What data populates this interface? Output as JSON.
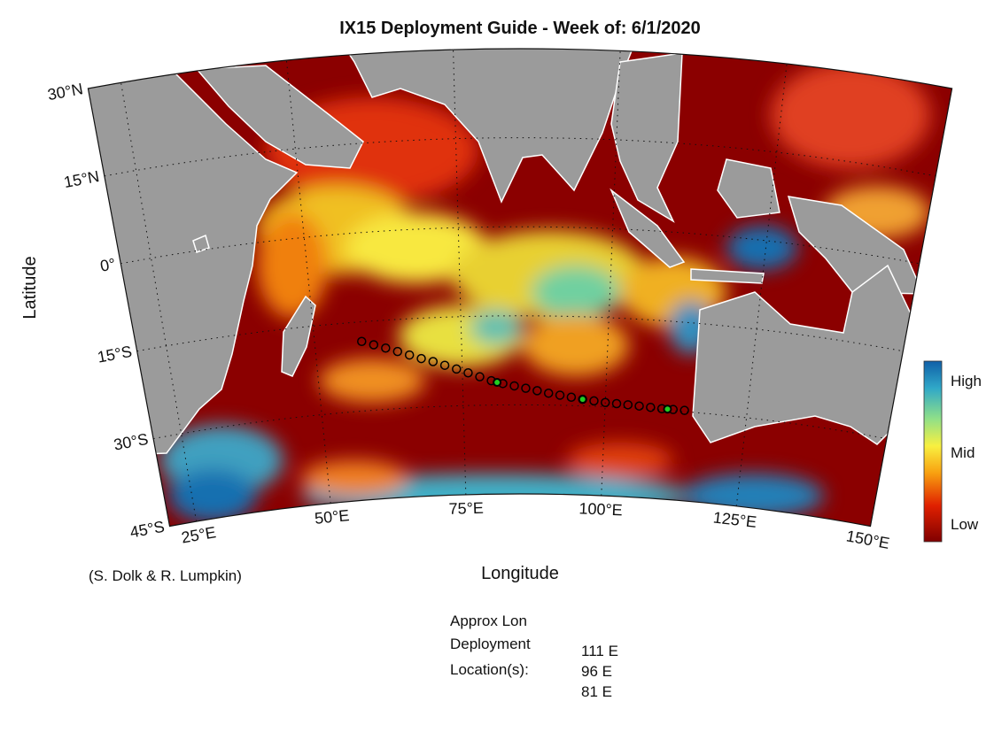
{
  "chart_data": {
    "type": "map",
    "title": "IX15 Deployment Guide - Week of: 6/1/2020",
    "x_label": "Longitude",
    "y_label": "Latitude",
    "xlim": [
      20,
      150
    ],
    "ylim": [
      -45,
      30
    ],
    "xticks": [
      {
        "value": 25,
        "label": "25°E"
      },
      {
        "value": 50,
        "label": "50°E"
      },
      {
        "value": 75,
        "label": "75°E"
      },
      {
        "value": 100,
        "label": "100°E"
      },
      {
        "value": 125,
        "label": "125°E"
      },
      {
        "value": 150,
        "label": "150°E"
      }
    ],
    "yticks": [
      {
        "value": 30,
        "label": "30°N"
      },
      {
        "value": 15,
        "label": "15°N"
      },
      {
        "value": 0,
        "label": "0°"
      },
      {
        "value": -15,
        "label": "15°S"
      },
      {
        "value": -30,
        "label": "30°S"
      },
      {
        "value": -45,
        "label": "45°S"
      }
    ],
    "grid": true,
    "colorbar": {
      "labels": [
        "High",
        "Mid",
        "Low"
      ]
    },
    "track": {
      "color": "#000000",
      "lon": [
        58,
        60,
        62,
        64,
        66,
        68,
        70,
        72,
        74,
        76,
        78,
        80,
        82,
        84,
        86,
        88,
        90,
        92,
        94,
        96,
        98,
        100,
        102,
        104,
        106,
        108,
        110,
        112,
        114
      ],
      "lat": [
        -18.3,
        -19.0,
        -19.7,
        -20.4,
        -21.1,
        -21.8,
        -22.4,
        -23.1,
        -23.8,
        -24.5,
        -25.2,
        -25.9,
        -26.4,
        -26.8,
        -27.2,
        -27.6,
        -28.0,
        -28.3,
        -28.6,
        -28.9,
        -29.1,
        -29.3,
        -29.4,
        -29.5,
        -29.6,
        -29.7,
        -29.8,
        -29.8,
        -29.8
      ]
    },
    "deployment": {
      "color": "#22cc22",
      "heading": [
        "Approx Lon",
        "Deployment",
        "Location(s):"
      ],
      "labels": [
        "111 E",
        "96 E",
        "81 E"
      ],
      "lon": [
        111,
        96,
        81
      ],
      "lat": [
        -29.8,
        -28.9,
        -26.2
      ]
    },
    "credit": "(S. Dolk & R. Lumpkin)"
  }
}
